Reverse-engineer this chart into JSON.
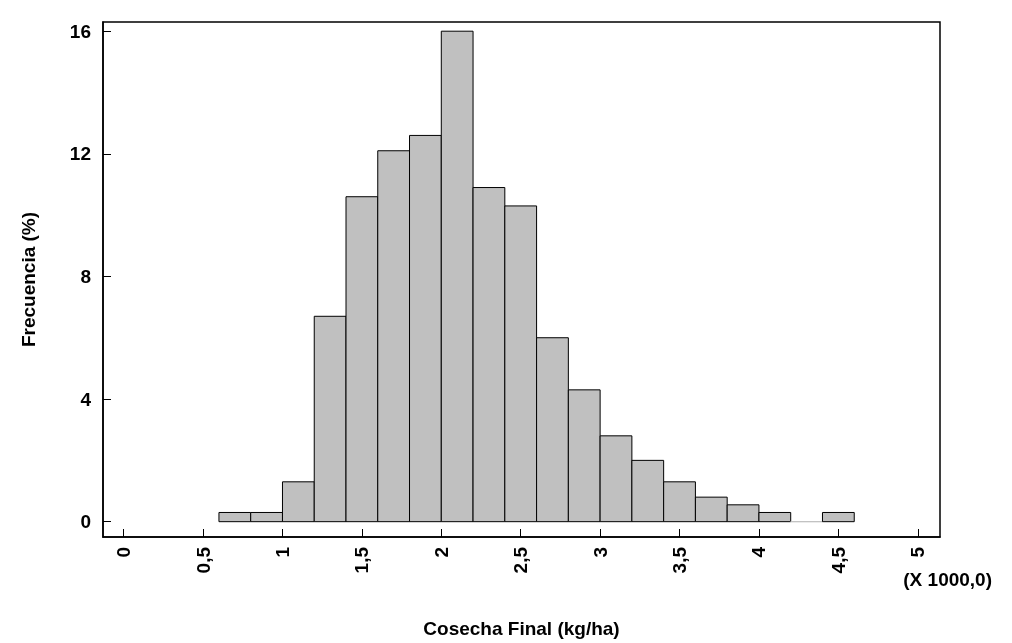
{
  "chart_data": {
    "type": "histogram",
    "xlabel": "Cosecha Final (kg/ha)",
    "ylabel": "Frecuencia (%)",
    "bins": [
      0.6,
      0.8,
      1.0,
      1.2,
      1.4,
      1.6,
      1.8,
      2.0,
      2.2,
      2.4,
      2.6,
      2.8,
      3.0,
      3.2,
      3.4,
      3.6,
      3.8,
      4.0,
      4.2,
      4.4,
      4.6
    ],
    "values": [
      0.3,
      0.3,
      1.3,
      6.7,
      10.6,
      12.1,
      12.6,
      16,
      10.9,
      10.3,
      6.0,
      4.3,
      2.8,
      2.0,
      1.3,
      0.8,
      0.55,
      0.3,
      0,
      0.3
    ],
    "color": "#c0c0c0",
    "xlim": [
      -0.13,
      5.14
    ],
    "ylim": [
      -0.5,
      16.3
    ],
    "xticks": [
      0,
      {
        "value": 0.5,
        "label": "0,5"
      },
      1,
      {
        "value": 1.5,
        "label": "1,5"
      },
      2,
      {
        "value": 2.5,
        "label": "2,5"
      },
      3,
      {
        "value": 3.5,
        "label": "3,5"
      },
      4,
      {
        "value": 4.5,
        "label": "4,5"
      },
      5
    ],
    "yticks": [
      0,
      4,
      8,
      12,
      16
    ],
    "annotations": [
      "(X 1000,0)"
    ],
    "grid": false
  }
}
